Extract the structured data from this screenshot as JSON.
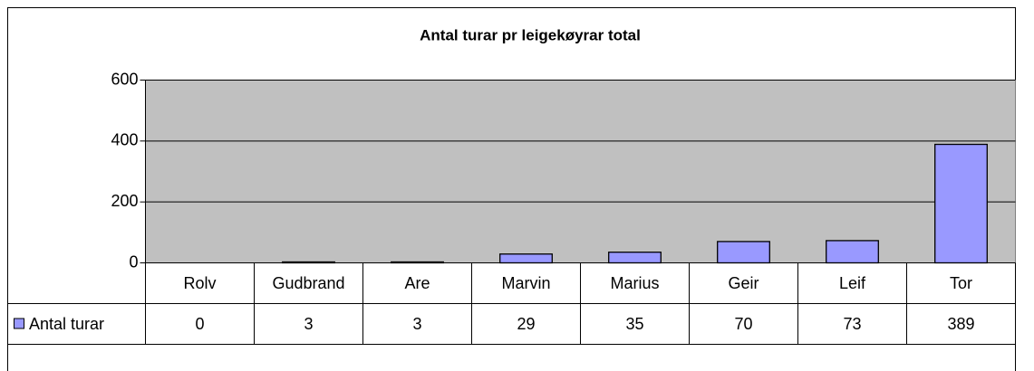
{
  "chart_data": {
    "type": "bar",
    "title": "Antal turar pr leigekøyrar total",
    "categories": [
      "Rolv",
      "Gudbrand",
      "Are",
      "Marvin",
      "Marius",
      "Geir",
      "Leif",
      "Tor"
    ],
    "series": [
      {
        "name": "Antal turar",
        "color": "#9999ff",
        "values": [
          0,
          3,
          3,
          29,
          35,
          70,
          73,
          389
        ]
      }
    ],
    "ylim": [
      0,
      600
    ],
    "yticks": [
      0,
      200,
      400,
      600
    ],
    "grid": true
  }
}
